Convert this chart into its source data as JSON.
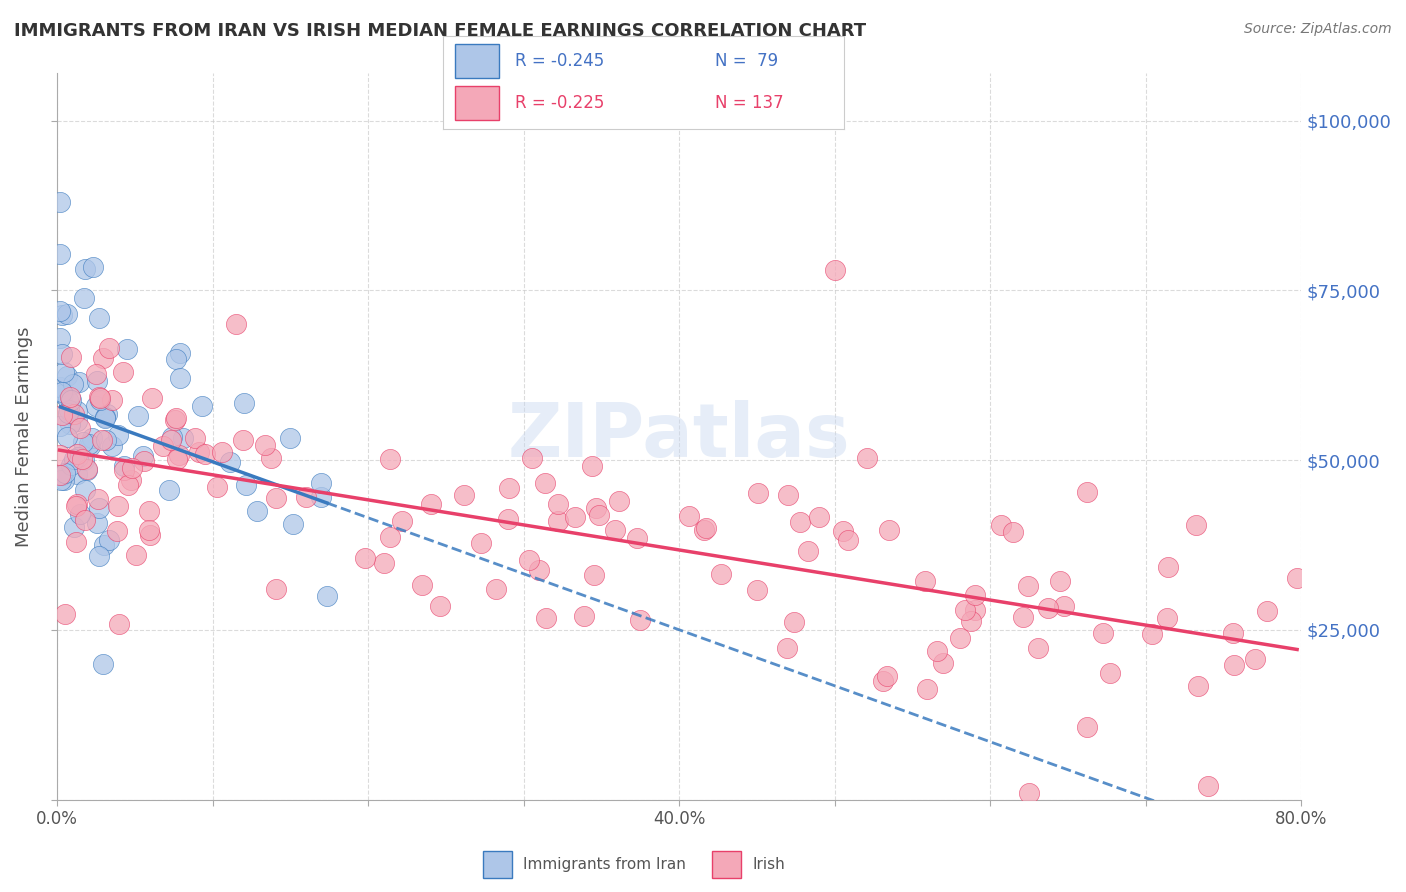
{
  "title": "IMMIGRANTS FROM IRAN VS IRISH MEDIAN FEMALE EARNINGS CORRELATION CHART",
  "source": "Source: ZipAtlas.com",
  "ylabel": "Median Female Earnings",
  "xmin": 0.0,
  "xmax": 0.8,
  "ymin": 0,
  "ymax": 107000,
  "color_iran": "#aec6e8",
  "color_irish": "#f4a8b8",
  "color_iran_line": "#3a7abf",
  "color_irish_line": "#e8406a",
  "background_color": "#ffffff",
  "grid_color": "#cccccc",
  "watermark_text": "ZIPatlas",
  "watermark_color": "#c8d8f0"
}
